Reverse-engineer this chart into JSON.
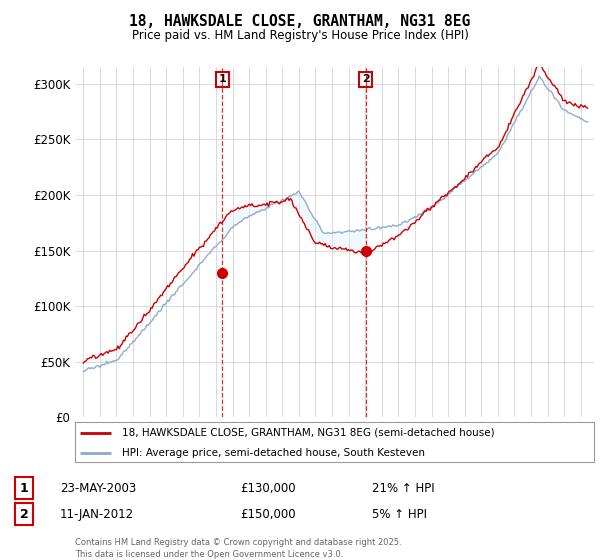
{
  "title1": "18, HAWKSDALE CLOSE, GRANTHAM, NG31 8EG",
  "title2": "Price paid vs. HM Land Registry's House Price Index (HPI)",
  "ylabel_ticks": [
    "£0",
    "£50K",
    "£100K",
    "£150K",
    "£200K",
    "£250K",
    "£300K"
  ],
  "ytick_vals": [
    0,
    50000,
    100000,
    150000,
    200000,
    250000,
    300000
  ],
  "ylim": [
    0,
    315000
  ],
  "xlim_start": 1994.5,
  "xlim_end": 2025.8,
  "sale1_date": "23-MAY-2003",
  "sale1_price": 130000,
  "sale1_year": 2003.38,
  "sale1_pct": "21%",
  "sale2_date": "11-JAN-2012",
  "sale2_price": 150000,
  "sale2_year": 2012.03,
  "sale2_pct": "5%",
  "legend_line1": "18, HAWKSDALE CLOSE, GRANTHAM, NG31 8EG (semi-detached house)",
  "legend_line2": "HPI: Average price, semi-detached house, South Kesteven",
  "footer": "Contains HM Land Registry data © Crown copyright and database right 2025.\nThis data is licensed under the Open Government Licence v3.0.",
  "line_color_red": "#cc0000",
  "line_color_blue": "#88aacc",
  "fill_color": "#ddeeff",
  "background_color": "#ffffff",
  "grid_color": "#cccccc",
  "sale_marker_color": "#cc0000",
  "box_border_color": "#cc0000"
}
